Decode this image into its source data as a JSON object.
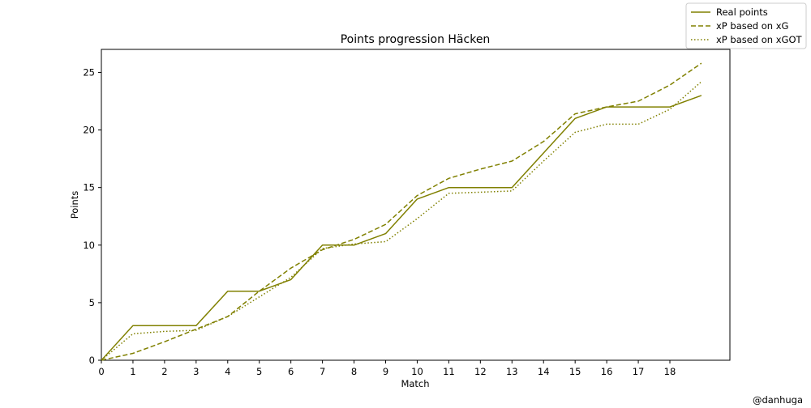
{
  "chart_data": {
    "type": "line",
    "title": "Points progression Häcken",
    "xlabel": "Match",
    "ylabel": "Points",
    "xlim": [
      0,
      19.9
    ],
    "ylim": [
      0,
      27
    ],
    "xticks": [
      0,
      1,
      2,
      3,
      4,
      5,
      6,
      7,
      8,
      9,
      10,
      11,
      12,
      13,
      14,
      15,
      16,
      17,
      18
    ],
    "yticks": [
      0,
      5,
      10,
      15,
      20,
      25
    ],
    "grid": false,
    "legend_position": "top-right",
    "x": [
      0,
      1,
      2,
      3,
      4,
      5,
      6,
      7,
      8,
      9,
      10,
      11,
      12,
      13,
      14,
      15,
      16,
      17,
      18,
      19
    ],
    "series": [
      {
        "name": "Real points",
        "style": "solid",
        "color": "#808000",
        "values": [
          0,
          3,
          3,
          3,
          6,
          6,
          7,
          10,
          10,
          11,
          14,
          15,
          15,
          15,
          18,
          21,
          22,
          22,
          22,
          23
        ]
      },
      {
        "name": "xP based on xG",
        "style": "dashed",
        "color": "#808000",
        "values": [
          0,
          0.6,
          1.6,
          2.7,
          3.8,
          6.0,
          8.0,
          9.6,
          10.5,
          11.8,
          14.3,
          15.8,
          16.6,
          17.3,
          19.0,
          21.4,
          22.0,
          22.5,
          23.9,
          25.8
        ]
      },
      {
        "name": "xP based on xGOT",
        "style": "dotted",
        "color": "#808000",
        "values": [
          0,
          2.3,
          2.5,
          2.6,
          3.8,
          5.5,
          7.2,
          9.7,
          10.1,
          10.3,
          12.3,
          14.5,
          14.6,
          14.7,
          17.3,
          19.8,
          20.5,
          20.5,
          21.8,
          24.2
        ]
      }
    ]
  },
  "credit": "@danhuga"
}
